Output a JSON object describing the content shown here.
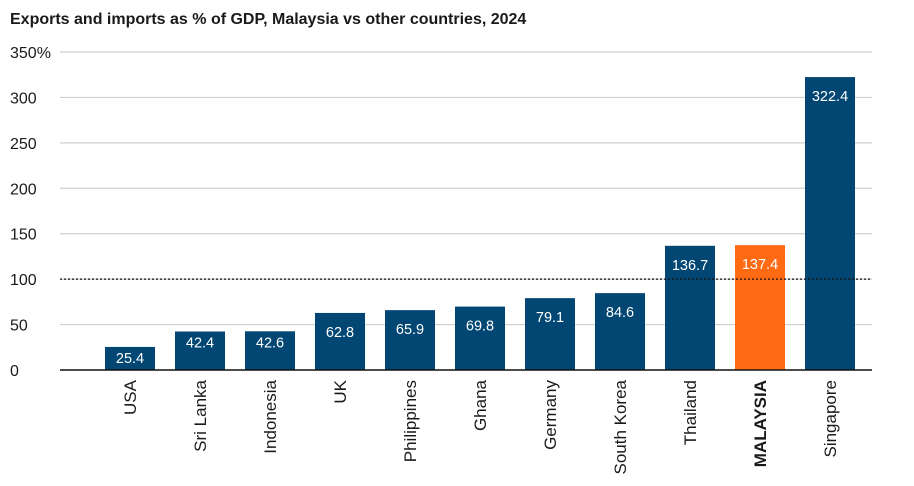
{
  "chart_data": {
    "type": "bar",
    "title": "Exports and imports as % of GDP, Malaysia vs other countries, 2024",
    "categories": [
      "USA",
      "Sri Lanka",
      "Indonesia",
      "UK",
      "Philippines",
      "Ghana",
      "Germany",
      "South Korea",
      "Thailand",
      "MALAYSIA",
      "Singapore"
    ],
    "values": [
      25.4,
      42.4,
      42.6,
      62.8,
      65.9,
      69.8,
      79.1,
      84.6,
      136.7,
      137.4,
      322.4
    ],
    "value_labels": [
      "25.4",
      "42.4",
      "42.6",
      "62.8",
      "65.9",
      "69.8",
      "79.1",
      "84.6",
      "136.7",
      "137.4",
      "322.4"
    ],
    "highlight_category": "MALAYSIA",
    "ylim": [
      0,
      350
    ],
    "y_ticks": [
      0,
      50,
      100,
      150,
      200,
      250,
      300,
      350
    ],
    "y_tick_labels": [
      "0",
      "50",
      "100",
      "150",
      "200",
      "250",
      "300",
      "350%"
    ],
    "reference_line": 100,
    "xlabel": "",
    "ylabel": "",
    "grid": true,
    "colors": {
      "bar": "#024673",
      "highlight": "#ff6a13",
      "grid": "#cfcfcf",
      "text": "#1a1a1a"
    }
  }
}
